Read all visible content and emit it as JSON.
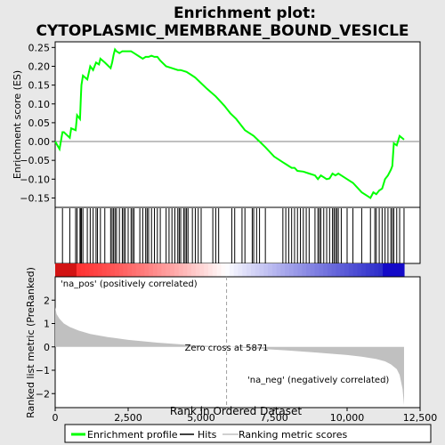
{
  "chart_data": {
    "type": "line",
    "title_line1": "Enrichment plot:",
    "title_line2": "CYTOPLASMIC_MEMBRANE_BOUND_VESICLE",
    "top_panel": {
      "ylabel": "Enrichment score (ES)",
      "ylim": [
        -0.175,
        0.265
      ],
      "yticks": [
        -0.15,
        -0.1,
        -0.05,
        0.0,
        0.05,
        0.1,
        0.15,
        0.2,
        0.25
      ],
      "ytick_labels": [
        "−0.15",
        "−0.10",
        "−0.05",
        "0.00",
        "0.05",
        "0.10",
        "0.15",
        "0.20",
        "0.25"
      ],
      "series_name": "Enrichment profile",
      "line_color": "#00ff00",
      "x": [
        0,
        150,
        250,
        300,
        500,
        550,
        700,
        750,
        850,
        880,
        900,
        950,
        1100,
        1200,
        1300,
        1400,
        1500,
        1550,
        1700,
        1900,
        1950,
        2000,
        2050,
        2100,
        2200,
        2300,
        2400,
        2500,
        2600,
        2700,
        2900,
        3000,
        3100,
        3200,
        3300,
        3400,
        3500,
        3600,
        3800,
        4000,
        4200,
        4300,
        4500,
        4700,
        4800,
        5000,
        5200,
        5500,
        5800,
        6000,
        6200,
        6500,
        6800,
        7000,
        7200,
        7500,
        7800,
        7900,
        8000,
        8100,
        8200,
        8300,
        8500,
        8700,
        8900,
        9000,
        9100,
        9200,
        9300,
        9400,
        9500,
        9600,
        9700,
        9800,
        10000,
        10200,
        10500,
        10700,
        10800,
        10900,
        11000,
        11100,
        11200,
        11300,
        11400,
        11500,
        11550,
        11600,
        11700,
        11800,
        11950
      ],
      "es": [
        0.0,
        -0.02,
        0.025,
        0.025,
        0.01,
        0.035,
        0.03,
        0.07,
        0.06,
        0.12,
        0.15,
        0.175,
        0.165,
        0.2,
        0.19,
        0.21,
        0.205,
        0.22,
        0.21,
        0.195,
        0.21,
        0.23,
        0.245,
        0.24,
        0.235,
        0.24,
        0.24,
        0.24,
        0.24,
        0.235,
        0.225,
        0.22,
        0.225,
        0.225,
        0.228,
        0.225,
        0.225,
        0.215,
        0.2,
        0.195,
        0.19,
        0.19,
        0.185,
        0.175,
        0.17,
        0.155,
        0.14,
        0.12,
        0.095,
        0.075,
        0.06,
        0.03,
        0.015,
        0.0,
        -0.015,
        -0.04,
        -0.055,
        -0.06,
        -0.065,
        -0.07,
        -0.07,
        -0.078,
        -0.08,
        -0.085,
        -0.09,
        -0.1,
        -0.09,
        -0.095,
        -0.1,
        -0.098,
        -0.085,
        -0.09,
        -0.085,
        -0.09,
        -0.1,
        -0.11,
        -0.135,
        -0.145,
        -0.15,
        -0.135,
        -0.14,
        -0.13,
        -0.125,
        -0.1,
        -0.09,
        -0.075,
        -0.065,
        -0.005,
        -0.01,
        0.015,
        0.005
      ]
    },
    "hits": [
      250,
      500,
      700,
      750,
      850,
      880,
      900,
      950,
      1100,
      1200,
      1300,
      1400,
      1450,
      1550,
      1700,
      1900,
      1950,
      2000,
      2050,
      2100,
      2200,
      2300,
      2350,
      2400,
      2500,
      2600,
      2650,
      2700,
      2900,
      3000,
      3100,
      3150,
      3200,
      3300,
      3400,
      3500,
      3600,
      3800,
      3900,
      4000,
      4100,
      4200,
      4250,
      4300,
      4400,
      4450,
      4500,
      4550,
      4700,
      4800,
      4900,
      5000,
      5400,
      5500,
      5600,
      6050,
      6150,
      6400,
      6500,
      6750,
      6800,
      6900,
      7000,
      7200,
      7800,
      7900,
      8000,
      8100,
      8200,
      8300,
      8400,
      8500,
      8600,
      8700,
      8900,
      9000,
      9050,
      9100,
      9200,
      9300,
      9400,
      9500,
      9550,
      9600,
      9650,
      9700,
      9800,
      10000,
      10200,
      10500,
      10800,
      10950,
      11000,
      11100,
      11200,
      11300,
      11400,
      11500,
      11550,
      11600,
      11700,
      11800,
      11950
    ],
    "bottom_panel": {
      "ylabel": "Ranked list metric (PreRanked)",
      "ylim": [
        -2.6,
        3.0
      ],
      "yticks": [
        -2,
        -1,
        0,
        1,
        2
      ],
      "ytick_labels": [
        "−2",
        "−1",
        "0",
        "1",
        "2"
      ],
      "metric_x": [
        0,
        50,
        150,
        300,
        500,
        800,
        1200,
        1800,
        2500,
        3500,
        4500,
        5871,
        7000,
        8000,
        9000,
        10000,
        10500,
        11000,
        11300,
        11500,
        11700,
        11800,
        11900,
        11950
      ],
      "metric_y": [
        1.7,
        1.4,
        1.2,
        1.0,
        0.85,
        0.7,
        0.55,
        0.42,
        0.3,
        0.18,
        0.09,
        0.0,
        -0.08,
        -0.16,
        -0.25,
        -0.35,
        -0.42,
        -0.52,
        -0.62,
        -0.75,
        -0.95,
        -1.2,
        -1.8,
        -2.5
      ],
      "pos_label": "'na_pos' (positively correlated)",
      "neg_label": "'na_neg' (negatively correlated)",
      "zero_cross_label": "Zero cross at 5871",
      "zero_cross_x": 5871
    },
    "xlabel": "Rank in Ordered Dataset",
    "xlim": [
      0,
      12500
    ],
    "xticks": [
      0,
      2500,
      5000,
      7500,
      10000,
      12500
    ],
    "xtick_labels": [
      "0",
      "2,500",
      "5,000",
      "7,500",
      "10,000",
      "12,500"
    ],
    "n_genes": 11950,
    "legend": {
      "items": [
        "Enrichment profile",
        "Hits",
        "Ranking metric scores"
      ]
    },
    "colors": {
      "background": "#e8e8e8",
      "es_line": "#00ff00",
      "metric_fill": "#c0c0c0",
      "pos_text": "#cc0000",
      "neg_text": "#0000cc"
    }
  }
}
